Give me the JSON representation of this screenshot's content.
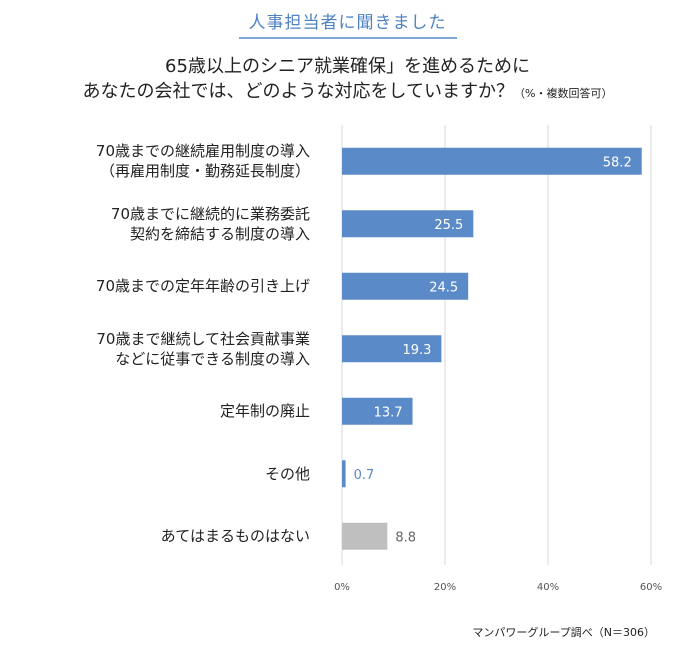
{
  "header": "人事担当者に聞きました",
  "title_line1": "65歳以上のシニア就業確保」を進めるために",
  "title_line2": "あなたの会社では、どのような対応をしていますか？",
  "title_note": "（%・複数回答可）",
  "source": "マンパワーグループ調べ（N＝306）",
  "colors": {
    "bar": "#5b8ac8",
    "bar_other": "#bfbfbf",
    "label_inside": "#ffffff",
    "label_outside_blue": "#5b8ac8",
    "label_outside_gray": "#666666"
  },
  "chart_data": {
    "type": "bar",
    "orientation": "horizontal",
    "categories": [
      [
        "70歳までの継続雇用制度の導入",
        "（再雇用制度・勤務延長制度）"
      ],
      [
        "70歳までに継続的に業務委託",
        "契約を締結する制度の導入"
      ],
      [
        "70歳までの定年年齢の引き上げ"
      ],
      [
        "70歳まで継続して社会貢献事業",
        "などに従事できる制度の導入"
      ],
      [
        "定年制の廃止"
      ],
      [
        "その他"
      ],
      [
        "あてはまるものはない"
      ]
    ],
    "values": [
      58.2,
      25.5,
      24.5,
      19.3,
      13.7,
      0.7,
      8.8
    ],
    "value_labels": [
      "58.2",
      "25.5",
      "24.5",
      "19.3",
      "13.7",
      "0.7",
      "8.8"
    ],
    "highlight": [
      "blue",
      "blue",
      "blue",
      "blue",
      "blue",
      "blue",
      "gray"
    ],
    "xlim": [
      0,
      60
    ],
    "xticks": [
      "0%",
      "20%",
      "40%",
      "60%"
    ],
    "xtick_values": [
      0,
      20,
      40,
      60
    ],
    "grid": true,
    "unit": "%"
  }
}
